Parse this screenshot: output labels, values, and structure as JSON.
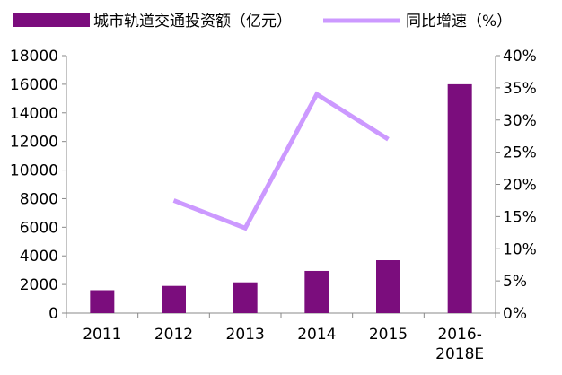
{
  "chart_data": {
    "type": "bar",
    "categories": [
      "2011",
      "2012",
      "2013",
      "2014",
      "2015",
      "2016-\n2018E"
    ],
    "series": [
      {
        "name": "城市轨道交通投资额（亿元）",
        "type": "bar",
        "axis": "left",
        "values": [
          1600,
          1900,
          2150,
          2950,
          3700,
          16000
        ]
      },
      {
        "name": "同比增速（%）",
        "type": "line",
        "axis": "right",
        "values": [
          null,
          17.5,
          13.2,
          34.0,
          27.0,
          null
        ]
      }
    ],
    "y_left": {
      "ylim": [
        0,
        18000
      ],
      "ticks": [
        "0",
        "2000",
        "4000",
        "6000",
        "8000",
        "10000",
        "12000",
        "14000",
        "16000",
        "18000"
      ]
    },
    "y_right": {
      "ylim": [
        0,
        40
      ],
      "ticks": [
        "0%",
        "5%",
        "10%",
        "15%",
        "20%",
        "25%",
        "30%",
        "35%",
        "40%"
      ]
    },
    "grid": false,
    "legend_position": "top",
    "colors": {
      "bar": "#7b0d7d",
      "line": "#cc99ff",
      "axis": "#888888"
    }
  }
}
